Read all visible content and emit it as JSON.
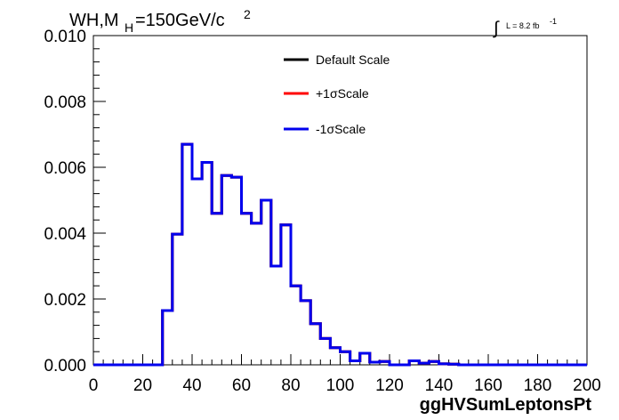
{
  "chart_data": {
    "type": "line",
    "title_parts": {
      "main": "WH,M",
      "sub": "H",
      "rest": "=150GeV/c",
      "sup": "2"
    },
    "lumi": {
      "symbol": "∫",
      "text": "L = 8.2 fb",
      "sup": "-1"
    },
    "xlabel": "ggHVSumLeptonsPt",
    "ylabel": "",
    "xlim": [
      0,
      200
    ],
    "ylim": [
      0,
      0.01
    ],
    "x_ticks": [
      "0",
      "20",
      "40",
      "60",
      "80",
      "100",
      "120",
      "140",
      "160",
      "180",
      "200"
    ],
    "y_ticks": [
      "0.000",
      "0.002",
      "0.004",
      "0.006",
      "0.008",
      "0.010"
    ],
    "grid": false,
    "legend_position": "top-center",
    "bin_width": 4,
    "bin_edges_start": 0,
    "series": [
      {
        "name": "Default Scale",
        "color": "#000000",
        "values": [
          0,
          0,
          0,
          0,
          0,
          0,
          0,
          0.00165,
          0.00397,
          0.0067,
          0.00565,
          0.00615,
          0.0046,
          0.00575,
          0.0057,
          0.0046,
          0.0043,
          0.005,
          0.003,
          0.00425,
          0.0024,
          0.00195,
          0.00125,
          0.0008,
          0.00052,
          0.0004,
          0.00012,
          0.00035,
          8e-05,
          0.0001,
          0,
          0,
          0.00012,
          5e-05,
          0.0001,
          3e-05,
          2e-05,
          0,
          0,
          0,
          0,
          0,
          0,
          0,
          0,
          0,
          0,
          0,
          0,
          0
        ]
      },
      {
        "name": "+1σScale",
        "color": "#ff0000",
        "values": [
          0,
          0,
          0,
          0,
          0,
          0,
          0,
          0.00165,
          0.00397,
          0.0067,
          0.00565,
          0.00615,
          0.0046,
          0.00575,
          0.0057,
          0.0046,
          0.0043,
          0.005,
          0.003,
          0.00425,
          0.0024,
          0.00195,
          0.00125,
          0.0008,
          0.00052,
          0.0004,
          0.00012,
          0.00035,
          8e-05,
          0.0001,
          0,
          0,
          0.00012,
          5e-05,
          0.0001,
          3e-05,
          2e-05,
          0,
          0,
          0,
          0,
          0,
          0,
          0,
          0,
          0,
          0,
          0,
          0,
          0
        ]
      },
      {
        "name": "-1σScale",
        "color": "#0000ee",
        "values": [
          0,
          0,
          0,
          0,
          0,
          0,
          0,
          0.00165,
          0.00397,
          0.0067,
          0.00565,
          0.00615,
          0.0046,
          0.00575,
          0.0057,
          0.0046,
          0.0043,
          0.005,
          0.003,
          0.00425,
          0.0024,
          0.00195,
          0.00125,
          0.0008,
          0.00052,
          0.0004,
          0.00012,
          0.00035,
          8e-05,
          0.0001,
          0,
          0,
          0.00012,
          5e-05,
          0.0001,
          3e-05,
          2e-05,
          0,
          0,
          0,
          0,
          0,
          0,
          0,
          0,
          0,
          0,
          0,
          0,
          0
        ]
      }
    ]
  }
}
